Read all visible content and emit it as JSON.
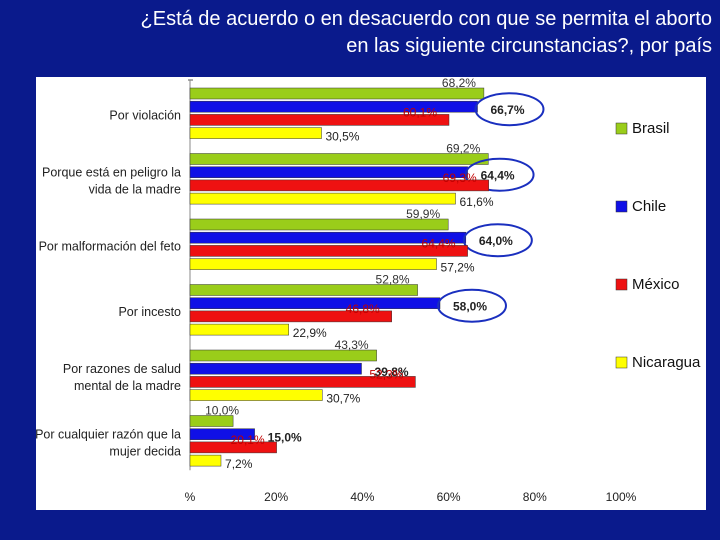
{
  "slide": {
    "title_line1": "¿Está de acuerdo o en desacuerdo con que se permita el aborto",
    "title_line2": "en las siguiente circunstancias?, por país"
  },
  "chart_data": {
    "type": "bar",
    "orientation": "horizontal",
    "title": "¿Está de acuerdo o en desacuerdo con que se permita el aborto en las siguiente circunstancias?, por país",
    "categories": [
      [
        "Por violación"
      ],
      [
        "Porque está en peligro la",
        "vida de la madre"
      ],
      [
        "Por malformación del feto"
      ],
      [
        "Por incesto"
      ],
      [
        "Por razones de salud",
        "mental de la madre"
      ],
      [
        "Por cualquier razón que la",
        "mujer decida"
      ]
    ],
    "series": [
      {
        "name": "Brasil",
        "color": "#9acd1a",
        "values": [
          68.2,
          69.2,
          59.9,
          52.8,
          43.3,
          10.0
        ],
        "labels": [
          "68,2%",
          "69,2%",
          "59,9%",
          "52,8%",
          "43,3%",
          "10,0%"
        ]
      },
      {
        "name": "Chile",
        "color": "#1010e6",
        "values": [
          66.7,
          64.4,
          64.0,
          58.0,
          39.8,
          15.0
        ],
        "labels": [
          "66,7%",
          "64,4%",
          "64,0%",
          "58,0%",
          "39,8%",
          "15,0%"
        ]
      },
      {
        "name": "México",
        "color": "#ee1111",
        "values": [
          60.1,
          69.3,
          64.4,
          46.8,
          52.3,
          20.1
        ],
        "labels": [
          "60,1%",
          "69,3%",
          "64,4%",
          "46,8%",
          "52,3%",
          "20,1%"
        ]
      },
      {
        "name": "Nicaragua",
        "color": "#ffff00",
        "values": [
          30.5,
          61.6,
          57.2,
          22.9,
          30.7,
          7.2
        ],
        "labels": [
          "30,5%",
          "61,6%",
          "57,2%",
          "22,9%",
          "30,7%",
          "7,2%"
        ]
      }
    ],
    "highlighted_series": "Chile",
    "xlim": [
      0,
      100
    ],
    "xticks": [
      "%",
      "20%",
      "40%",
      "60%",
      "80%",
      "100%"
    ],
    "legend_position": "right"
  }
}
